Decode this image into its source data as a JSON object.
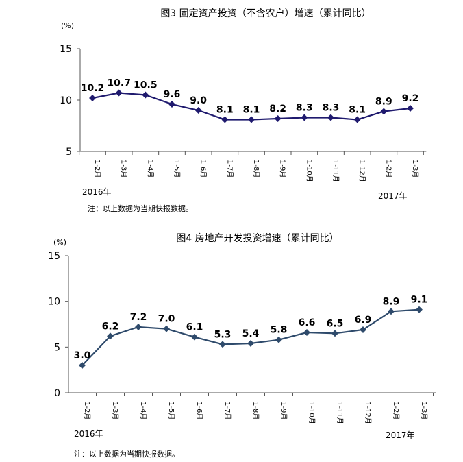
{
  "chart_data": [
    {
      "type": "line",
      "title": "图3   固定资产投资（不含农户）增速（累计同比）",
      "unit": "(%)",
      "categories": [
        "1-2月",
        "1-3月",
        "1-4月",
        "1-5月",
        "1-6月",
        "1-7月",
        "1-8月",
        "1-9月",
        "1-10月",
        "1-11月",
        "1-12月",
        "1-2月",
        "1-3月"
      ],
      "values": [
        10.2,
        10.7,
        10.5,
        9.6,
        9.0,
        8.1,
        8.1,
        8.2,
        8.3,
        8.3,
        8.1,
        8.9,
        9.2
      ],
      "data_labels": [
        "10.2",
        "10.7",
        "10.5",
        "9.6",
        "9.0",
        "8.1",
        "8.1",
        "8.2",
        "8.3",
        "8.3",
        "8.1",
        "8.9",
        "9.2"
      ],
      "y_ticks": [
        "15",
        "10",
        "5"
      ],
      "ylim": [
        5,
        15
      ],
      "year_labels": [
        "2016年",
        "2017年"
      ],
      "note": "注：以上数据为当期快报数据。",
      "color": "#1f1a6e",
      "grid": false
    },
    {
      "type": "line",
      "title": "图4   房地产开发投资增速（累计同比）",
      "unit": "(%)",
      "categories": [
        "1-2月",
        "1-3月",
        "1-4月",
        "1-5月",
        "1-6月",
        "1-7月",
        "1-8月",
        "1-9月",
        "1-10月",
        "1-11月",
        "1-12月",
        "1-2月",
        "1-3月"
      ],
      "values": [
        3.0,
        6.2,
        7.2,
        7.0,
        6.1,
        5.3,
        5.4,
        5.8,
        6.6,
        6.5,
        6.9,
        8.9,
        9.1
      ],
      "data_labels": [
        "3.0",
        "6.2",
        "7.2",
        "7.0",
        "6.1",
        "5.3",
        "5.4",
        "5.8",
        "6.6",
        "6.5",
        "6.9",
        "8.9",
        "9.1"
      ],
      "y_ticks": [
        "15",
        "10",
        "5",
        "0"
      ],
      "ylim": [
        0,
        15
      ],
      "year_labels": [
        "2016年",
        "2017年"
      ],
      "note": "注：以上数据为当期快报数据。",
      "color": "#2e4a6b",
      "grid": false
    }
  ]
}
